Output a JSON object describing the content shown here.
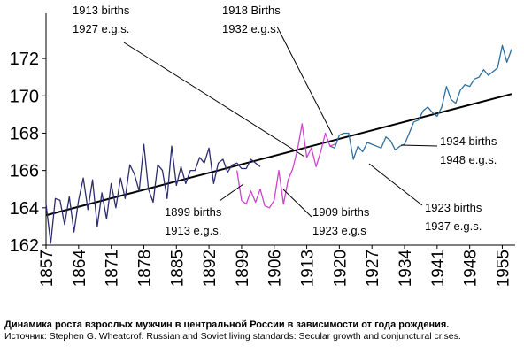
{
  "chart_data": {
    "type": "line",
    "title": "",
    "xlabel": "",
    "ylabel": "",
    "xlim": [
      1857,
      1957
    ],
    "ylim": [
      162,
      173
    ],
    "x_ticks": [
      "1857",
      "1864",
      "1871",
      "1878",
      "1885",
      "1892",
      "1899",
      "1906",
      "1913",
      "1920",
      "1927",
      "1934",
      "1941",
      "1948",
      "1955"
    ],
    "y_ticks": [
      "162",
      "164",
      "166",
      "168",
      "170",
      "172"
    ],
    "grid": false,
    "series": [
      {
        "color": "#2d2d6e",
        "x": [
          1857,
          1858,
          1859,
          1860,
          1861,
          1862,
          1863,
          1864,
          1865,
          1866,
          1867,
          1868,
          1869,
          1870,
          1871,
          1872,
          1873,
          1874,
          1875,
          1876,
          1877,
          1878,
          1879,
          1880,
          1881,
          1882,
          1883,
          1884,
          1885,
          1886,
          1887,
          1888,
          1889,
          1890,
          1891,
          1892,
          1893,
          1894,
          1895,
          1896,
          1897,
          1898,
          1899,
          1900,
          1901,
          1902,
          1903
        ],
        "values": [
          164.2,
          162.1,
          164.5,
          164.4,
          163.1,
          164.6,
          162.7,
          164.4,
          165.6,
          163.9,
          165.5,
          163.0,
          164.8,
          163.4,
          165.3,
          164.0,
          165.6,
          164.5,
          166.3,
          165.8,
          164.9,
          167.4,
          165.0,
          164.3,
          166.3,
          166.0,
          164.5,
          167.3,
          165.2,
          166.2,
          165.3,
          166.0,
          166.0,
          166.7,
          166.4,
          167.2,
          165.3,
          166.4,
          166.6,
          165.9,
          166.3,
          166.4,
          166.1,
          166.1,
          166.6,
          166.4,
          166.2
        ]
      },
      {
        "color": "#cc44cc",
        "x": [
          1898,
          1899,
          1900,
          1901,
          1902,
          1903,
          1904,
          1905,
          1906,
          1907,
          1908,
          1909,
          1910,
          1911,
          1912,
          1913,
          1914,
          1915,
          1916,
          1917,
          1918,
          1919
        ],
        "values": [
          166.0,
          164.4,
          164.2,
          164.9,
          164.3,
          165.0,
          164.1,
          164.0,
          164.4,
          166.0,
          164.2,
          165.5,
          166.1,
          167.1,
          168.5,
          166.7,
          167.2,
          166.2,
          167.0,
          168.0,
          167.3,
          167.4
        ]
      },
      {
        "color": "#2e6f9e",
        "x": [
          1918,
          1919,
          1920,
          1921,
          1922,
          1923,
          1924,
          1925,
          1926,
          1927,
          1928,
          1929,
          1930,
          1931,
          1932,
          1933,
          1934,
          1935,
          1936,
          1937,
          1938,
          1939,
          1940,
          1941,
          1942,
          1943,
          1944,
          1945,
          1946,
          1947,
          1948,
          1949,
          1950,
          1951,
          1952,
          1953,
          1954,
          1955,
          1956,
          1957
        ],
        "values": [
          167.3,
          167.2,
          167.9,
          168.0,
          168.0,
          166.6,
          167.3,
          167.0,
          167.5,
          167.4,
          167.3,
          167.2,
          167.8,
          167.6,
          167.1,
          167.3,
          167.4,
          168.0,
          168.6,
          168.7,
          169.2,
          169.4,
          169.1,
          168.9,
          169.4,
          170.5,
          169.8,
          169.6,
          170.3,
          170.6,
          170.5,
          170.9,
          171.0,
          171.4,
          171.1,
          171.3,
          171.5,
          172.7,
          171.8,
          172.5
        ]
      }
    ],
    "trend_line": {
      "x": [
        1857,
        1957
      ],
      "values": [
        163.6,
        170.1
      ]
    },
    "annotations": [
      {
        "lines": [
          "1913 births",
          "1927 e.g.s."
        ]
      },
      {
        "lines": [
          "1918 Births",
          "1932 e.g.s."
        ]
      },
      {
        "lines": [
          "1934 births",
          "1948 e.g.s."
        ]
      },
      {
        "lines": [
          "1923 births",
          "1937 e.g.s."
        ]
      },
      {
        "lines": [
          "1899 births",
          "1913 e.g.s."
        ]
      },
      {
        "lines": [
          "1909 births",
          "1923 e.g.s"
        ]
      }
    ]
  },
  "caption": {
    "title": "Динамика роста взрослых мужчин в центральной России в зависимости от года рождения.",
    "source": "Источник: Stephen G. Wheatcrof. Russian and Soviet living standards: Secular growth and conjunctural crises."
  }
}
